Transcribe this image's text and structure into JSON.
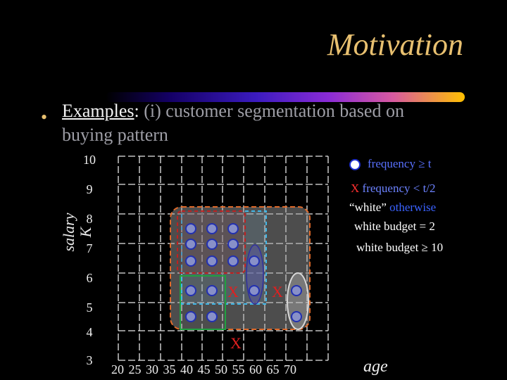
{
  "slide": {
    "title": "Motivation",
    "bullet_glyph": "•",
    "examples_word": "Examples",
    "examples_colon": ":",
    "line1_rest": " (i) customer segmentation based on",
    "line2": "buying pattern"
  },
  "axes": {
    "ylabel": "salary K",
    "xlabel": "age",
    "yticks": [
      "10",
      "9",
      "8",
      "7",
      "6",
      "5",
      "4",
      "3"
    ],
    "xticks": "20  25  30  35  40  45  50  55  60  65   70"
  },
  "legend": {
    "circle_label": "frequency ≥ t",
    "x_mark": "X",
    "x_label": " frequency < t/2",
    "white_quote": "“white”",
    "white_rest": " otherwise",
    "budget_small": "white budget = 2",
    "budget_large": "white budget ≥ 10"
  },
  "marks": {
    "x_glyph": "X",
    "colors": {
      "dot_fill": "#8890c8",
      "dot_border": "#2230b0",
      "x_color": "#e02020",
      "region_orange": "#e06a2a",
      "region_blue": "#40b8e8",
      "region_red": "#c02020",
      "region_green": "#20a040"
    }
  }
}
